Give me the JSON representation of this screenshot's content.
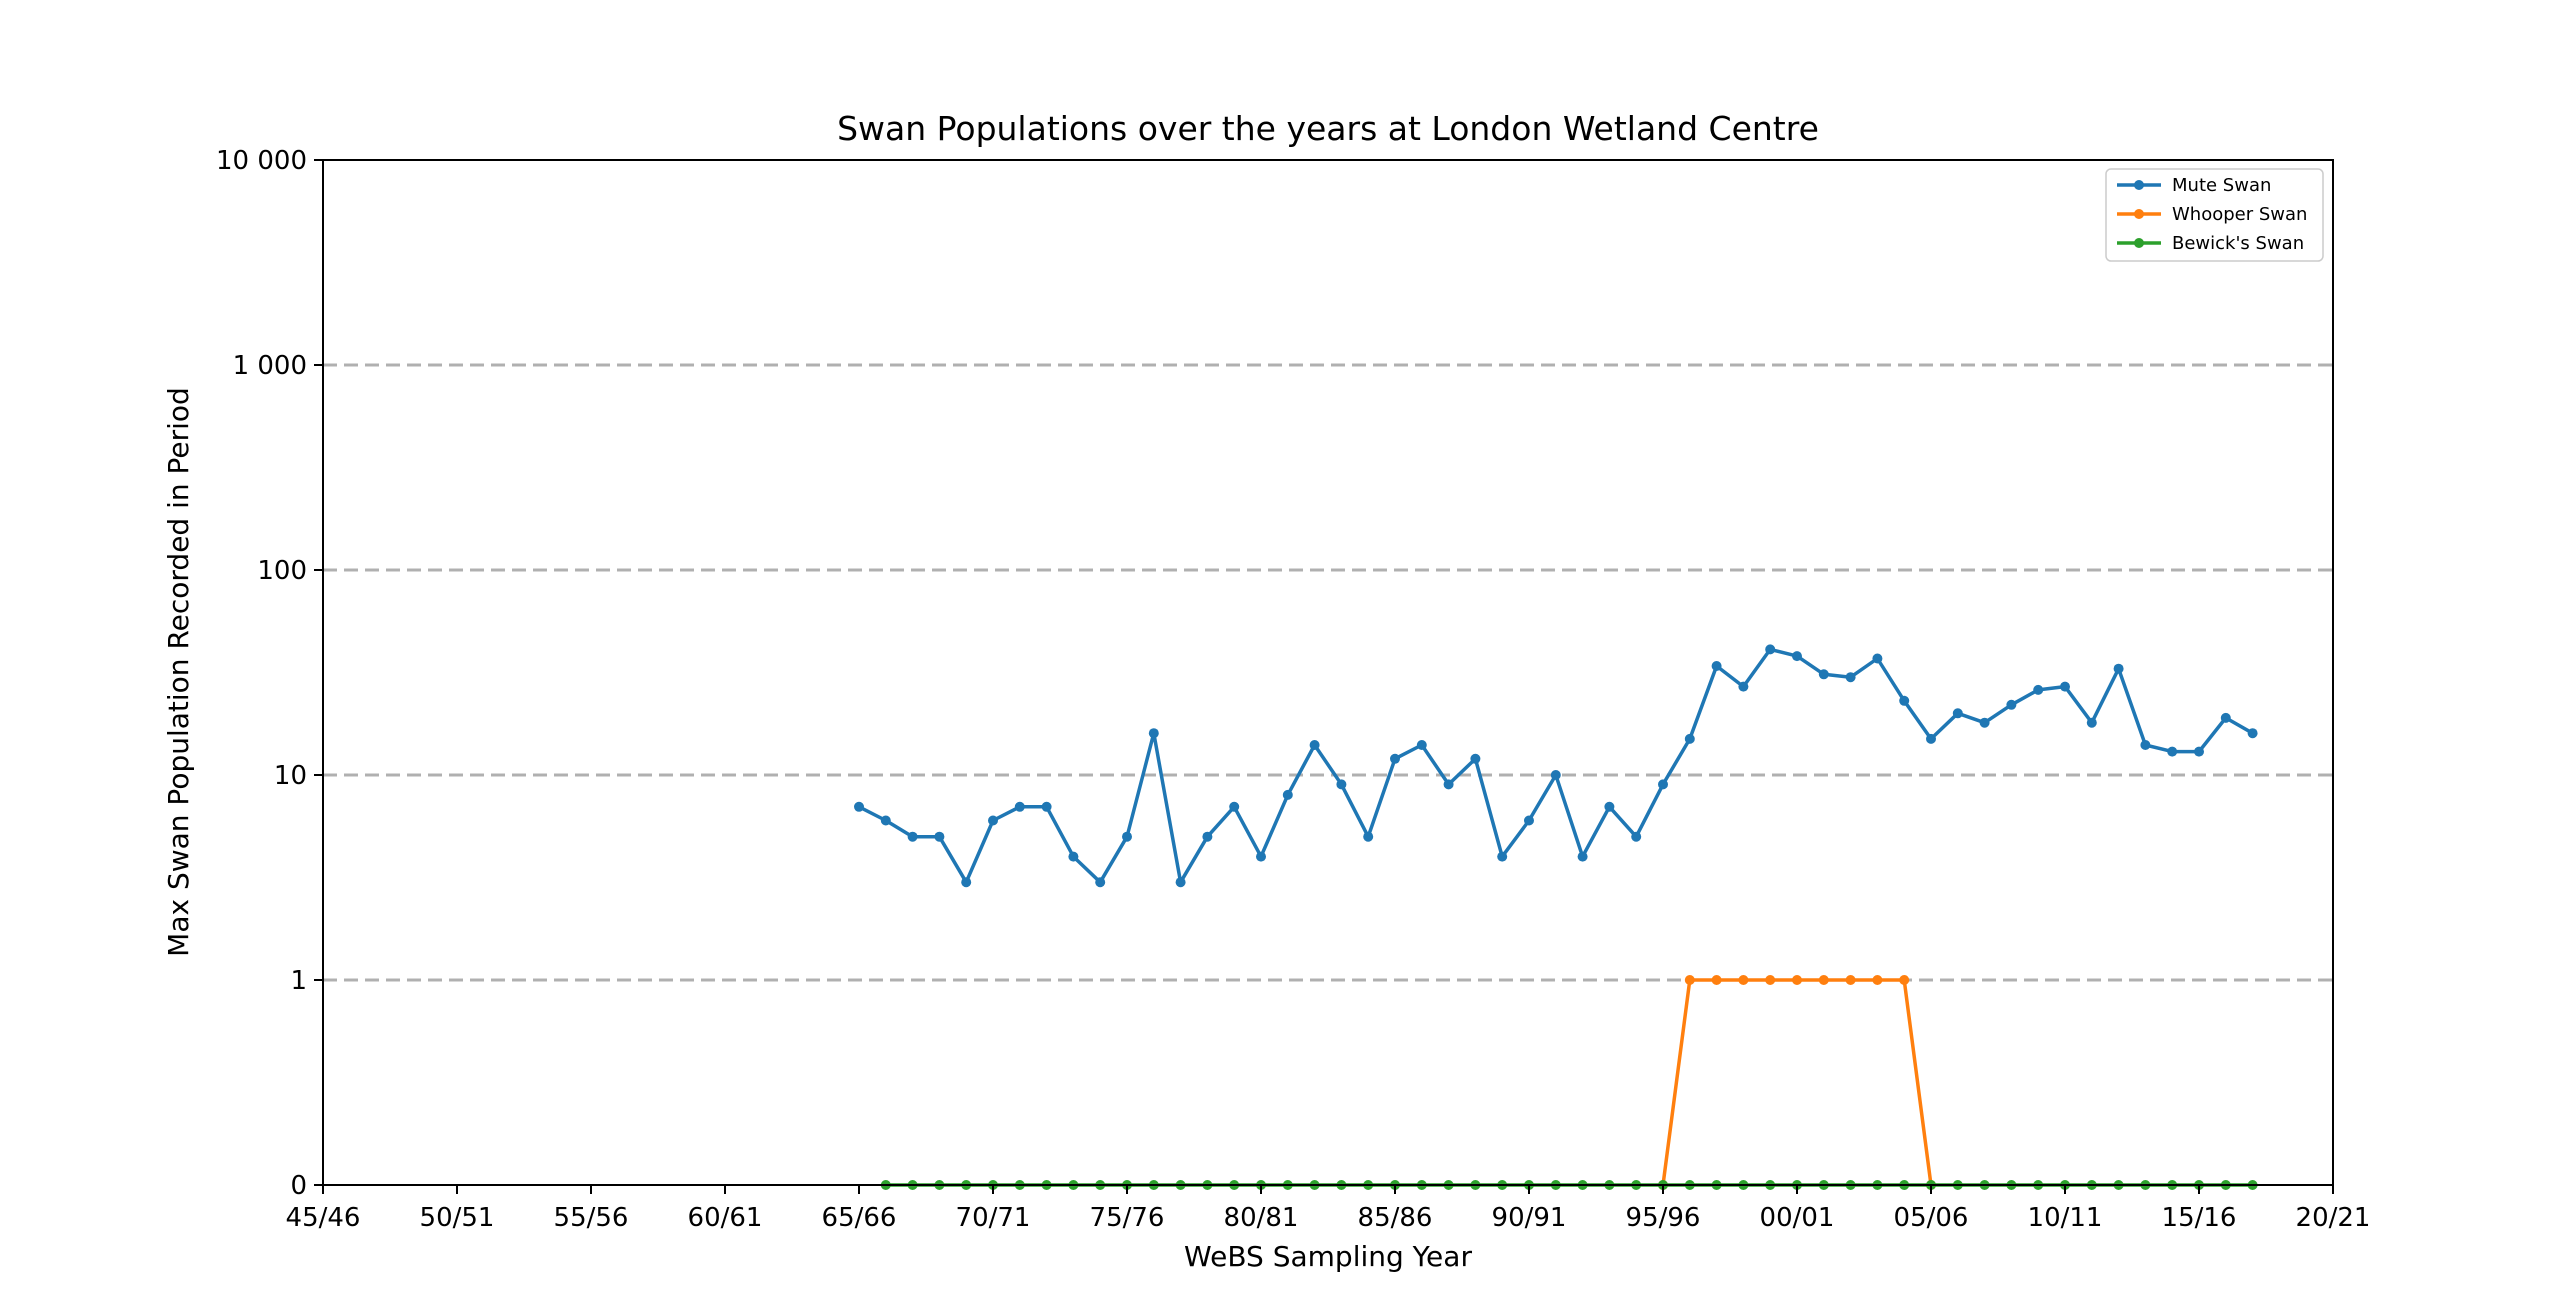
{
  "chart_data": {
    "type": "line",
    "title": "Swan Populations over the years at London Wetland Centre",
    "xlabel": "WeBS Sampling Year",
    "ylabel": "Max Swan Population Recorded in Period",
    "x_axis": {
      "kind": "season-year",
      "range": [
        "45/46",
        "20/21"
      ],
      "ticks": [
        "45/46",
        "50/51",
        "55/56",
        "60/61",
        "65/66",
        "70/71",
        "75/76",
        "80/81",
        "85/86",
        "90/91",
        "95/96",
        "00/01",
        "05/06",
        "10/11",
        "15/16",
        "20/21"
      ]
    },
    "y_axis": {
      "scale": "symlog",
      "range": [
        0,
        10000
      ],
      "ticks": [
        0,
        1,
        10,
        100,
        1000,
        10000
      ],
      "tick_labels": [
        "0",
        "1",
        "10",
        "100",
        "1 000",
        "10 000"
      ]
    },
    "grid": {
      "horizontal": true,
      "style": "dashed",
      "color": "#b0b0b0"
    },
    "legend_position": "top-right",
    "series": [
      {
        "name": "Mute Swan",
        "color": "#1f77b4",
        "x": [
          "65/66",
          "66/67",
          "67/68",
          "68/69",
          "69/70",
          "70/71",
          "71/72",
          "72/73",
          "73/74",
          "74/75",
          "75/76",
          "76/77",
          "77/78",
          "78/79",
          "79/80",
          "80/81",
          "81/82",
          "82/83",
          "83/84",
          "84/85",
          "85/86",
          "86/87",
          "87/88",
          "88/89",
          "89/90",
          "90/91",
          "91/92",
          "92/93",
          "93/94",
          "94/95",
          "95/96",
          "96/97",
          "97/98",
          "98/99",
          "99/00",
          "00/01",
          "01/02",
          "02/03",
          "03/04",
          "04/05",
          "05/06",
          "06/07",
          "07/08",
          "08/09",
          "09/10",
          "10/11",
          "11/12",
          "12/13",
          "13/14",
          "14/15",
          "15/16",
          "16/17",
          "17/18"
        ],
        "values": [
          7,
          6,
          5,
          5,
          3,
          6,
          7,
          7,
          4,
          3,
          5,
          16,
          3,
          5,
          7,
          4,
          8,
          14,
          9,
          5,
          12,
          14,
          9,
          12,
          4,
          6,
          10,
          4,
          7,
          5,
          9,
          15,
          34,
          27,
          41,
          38,
          31,
          30,
          37,
          23,
          15,
          20,
          18,
          22,
          26,
          27,
          18,
          33,
          14,
          13,
          13,
          19,
          16
        ]
      },
      {
        "name": "Whooper Swan",
        "color": "#ff7f0e",
        "x": [
          "95/96",
          "96/97",
          "97/98",
          "98/99",
          "99/00",
          "00/01",
          "01/02",
          "02/03",
          "03/04",
          "04/05",
          "05/06"
        ],
        "values": [
          0,
          1,
          1,
          1,
          1,
          1,
          1,
          1,
          1,
          1,
          0
        ]
      },
      {
        "name": "Bewick's Swan",
        "color": "#2ca02c",
        "x": [
          "66/67",
          "67/68",
          "68/69",
          "69/70",
          "70/71",
          "71/72",
          "72/73",
          "73/74",
          "74/75",
          "75/76",
          "76/77",
          "77/78",
          "78/79",
          "79/80",
          "80/81",
          "81/82",
          "82/83",
          "83/84",
          "84/85",
          "85/86",
          "86/87",
          "87/88",
          "88/89",
          "89/90",
          "90/91",
          "91/92",
          "92/93",
          "93/94",
          "94/95",
          "95/96",
          "96/97",
          "97/98",
          "98/99",
          "99/00",
          "00/01",
          "01/02",
          "02/03",
          "03/04",
          "04/05",
          "05/06",
          "06/07",
          "07/08",
          "08/09",
          "09/10",
          "10/11",
          "11/12",
          "12/13",
          "13/14",
          "14/15",
          "15/16",
          "16/17",
          "17/18"
        ],
        "values": [
          0,
          0,
          0,
          0,
          0,
          0,
          0,
          0,
          0,
          0,
          0,
          0,
          0,
          0,
          0,
          0,
          0,
          0,
          0,
          0,
          0,
          0,
          0,
          0,
          0,
          0,
          0,
          0,
          0,
          0,
          0,
          0,
          0,
          0,
          0,
          0,
          0,
          0,
          0,
          0,
          0,
          0,
          0,
          0,
          0,
          0,
          0,
          0,
          0,
          0,
          0,
          0
        ]
      }
    ]
  }
}
